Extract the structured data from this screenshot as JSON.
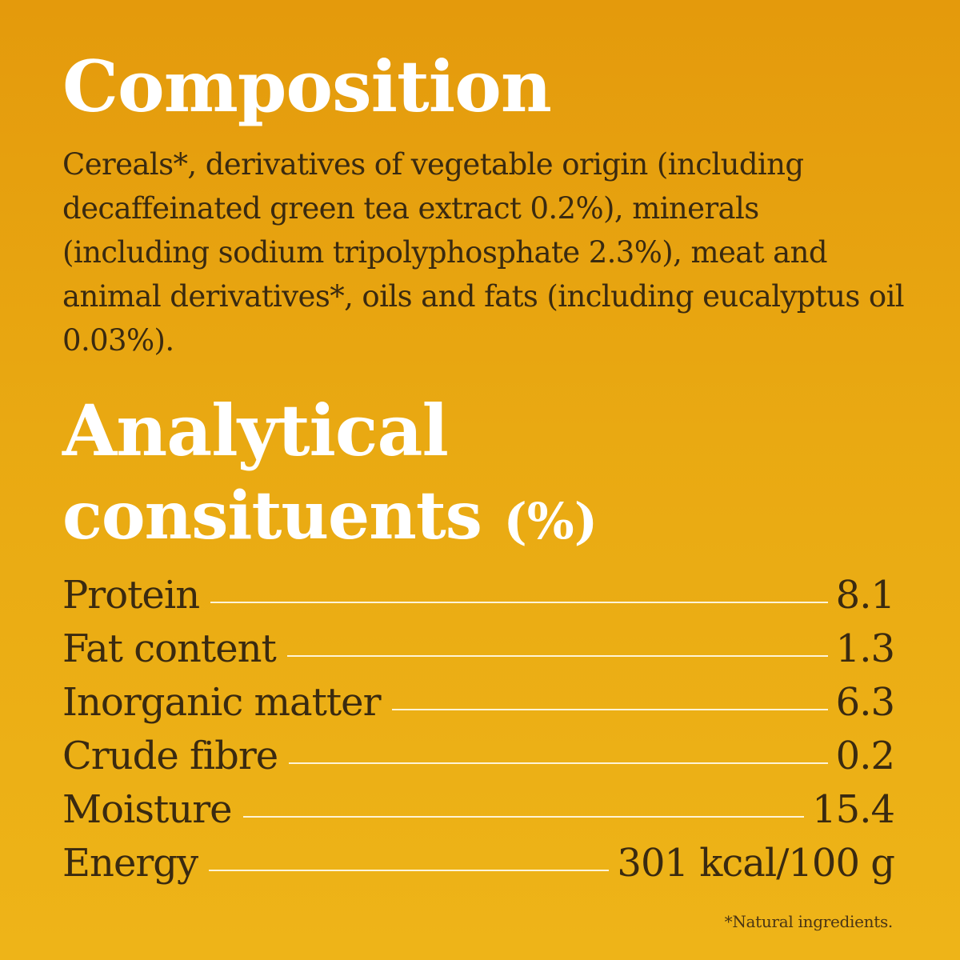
{
  "composition": {
    "heading": "Composition",
    "text": "Cereals*, derivatives of vegetable origin (including decaffeinated green tea extract 0.2%), minerals (including sodium tripolyphosphate 2.3%), meat and animal derivatives*, oils and fats (including eucalyptus oil 0.03%)."
  },
  "analytical": {
    "heading_line1": "Analytical",
    "heading_line2": "consituents",
    "heading_unit": "(%)",
    "rows": [
      {
        "label": "Protein",
        "value": "8.1"
      },
      {
        "label": "Fat content",
        "value": "1.3"
      },
      {
        "label": "Inorganic matter",
        "value": "6.3"
      },
      {
        "label": "Crude fibre",
        "value": "0.2"
      },
      {
        "label": "Moisture",
        "value": "15.4"
      },
      {
        "label": "Energy",
        "value": "301 kcal/100 g"
      }
    ]
  },
  "footnote": "*Natural ingredients.",
  "colors": {
    "background_top": "#e49a0c",
    "background_bottom": "#eeb418",
    "heading": "#ffffff",
    "body_text": "#3a2a10",
    "leader_line": "#fff4d6"
  }
}
